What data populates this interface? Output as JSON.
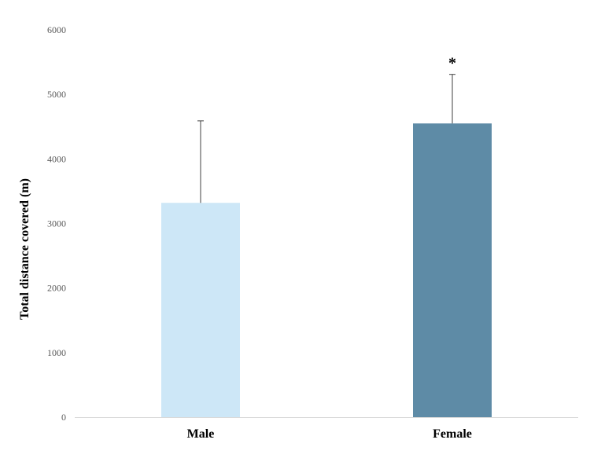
{
  "chart_data": {
    "type": "bar",
    "title": "",
    "xlabel": "",
    "ylabel": "Total distance covered (m)",
    "ylim": [
      0,
      6000
    ],
    "yticks": [
      0,
      1000,
      2000,
      3000,
      4000,
      5000,
      6000
    ],
    "categories": [
      "Male",
      "Female"
    ],
    "values": [
      3320,
      4550
    ],
    "error_upper": [
      4590,
      5310
    ],
    "bar_colors": [
      "#cde7f7",
      "#5e8ba6"
    ],
    "annotations": [
      "",
      "*"
    ],
    "grid": false,
    "legend": "none"
  }
}
